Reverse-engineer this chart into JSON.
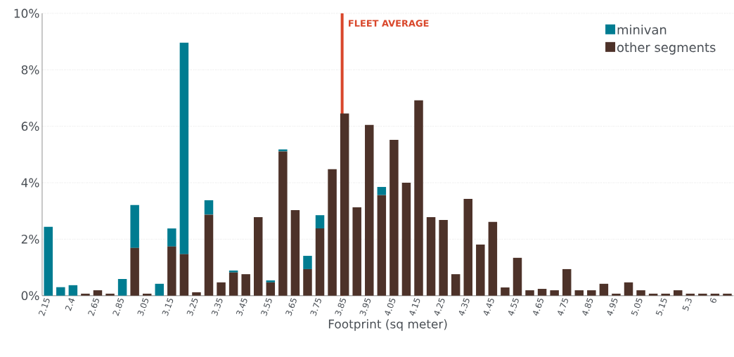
{
  "chart_data": {
    "type": "bar",
    "stacked": true,
    "xlabel": "Footprint (sq meter)",
    "categories": [
      "2.15",
      null,
      "2.4",
      null,
      "2.65",
      null,
      "2.85",
      null,
      "3.05",
      null,
      "3.15",
      null,
      "3.25",
      null,
      "3.35",
      null,
      "3.45",
      null,
      "3.55",
      null,
      "3.65",
      null,
      "3.75",
      null,
      "3.85",
      null,
      "3.95",
      null,
      "4.05",
      null,
      "4.15",
      null,
      "4.25",
      null,
      "4.35",
      null,
      "4.45",
      null,
      "4.55",
      null,
      "4.65",
      null,
      "4.75",
      null,
      "4.85",
      null,
      "4.95",
      null,
      "5.05",
      null,
      "5.15",
      null,
      "5.3",
      null,
      "6",
      null
    ],
    "series": [
      {
        "name": "other segments",
        "color": "#4d3229",
        "values": [
          0,
          0,
          0,
          0.07,
          0.19,
          0.07,
          0,
          1.69,
          0.07,
          0,
          1.74,
          1.47,
          0.12,
          2.87,
          0.47,
          0.82,
          0.76,
          2.78,
          0.47,
          5.11,
          3.03,
          0.94,
          2.38,
          4.48,
          6.45,
          3.13,
          6.05,
          3.56,
          5.52,
          4.0,
          6.92,
          2.78,
          2.68,
          0.76,
          3.43,
          1.81,
          2.61,
          0.29,
          1.34,
          0.19,
          0.24,
          0.19,
          0.94,
          0.19,
          0.19,
          0.42,
          0.07,
          0.47,
          0.19,
          0.07,
          0.07,
          0.19,
          0.07,
          0.07,
          0.07,
          0.07
        ]
      },
      {
        "name": "minivan",
        "color": "#007c91",
        "values": [
          2.44,
          0.3,
          0.37,
          0,
          0,
          0,
          0.59,
          1.52,
          0,
          0.42,
          0.64,
          7.49,
          0,
          0.51,
          0,
          0.07,
          0,
          0,
          0.07,
          0.07,
          0,
          0.47,
          0.47,
          0,
          0,
          0,
          0,
          0.29,
          0,
          0,
          0,
          0,
          0,
          0,
          0,
          0,
          0,
          0,
          0,
          0,
          0,
          0,
          0,
          0,
          0,
          0,
          0,
          0,
          0,
          0,
          0,
          0,
          0,
          0,
          0,
          0
        ]
      }
    ],
    "ylim": [
      0,
      10
    ],
    "yticks": [
      {
        "value": 0,
        "label": "0%"
      },
      {
        "value": 2,
        "label": "2%"
      },
      {
        "value": 4,
        "label": "4%"
      },
      {
        "value": 6,
        "label": "6%"
      },
      {
        "value": 8,
        "label": "8%"
      },
      {
        "value": 10,
        "label": "10%"
      }
    ],
    "grid": "y",
    "legend": "top right",
    "ref_lines": [
      {
        "axis": "x",
        "value": "3.85",
        "label": "FLEET AVERAGE",
        "color": "#d9472b"
      }
    ]
  }
}
